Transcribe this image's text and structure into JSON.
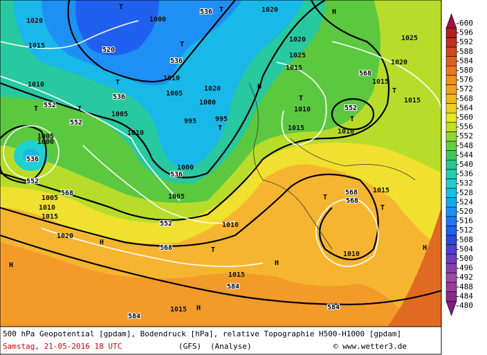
{
  "caption": {
    "title": "500 hPa Geopotential [gpdam], Bodendruck [hPa], relative Topographie H500-H1000 [gpdam]",
    "date": "Samstag, 21-05-2016  18 UTC",
    "model": "(GFS)",
    "run": "(Analyse)",
    "credit": "© www.wetter3.de"
  },
  "colorbar": {
    "levels": [
      480,
      484,
      488,
      492,
      496,
      500,
      504,
      508,
      512,
      516,
      520,
      524,
      528,
      532,
      536,
      540,
      544,
      548,
      552,
      556,
      560,
      564,
      568,
      572,
      576,
      580,
      584,
      588,
      592,
      596,
      600
    ],
    "colors": [
      "#7b1f7b",
      "#8a2c8a",
      "#9b3c9b",
      "#a04aa6",
      "#8a3fb0",
      "#6e3cc0",
      "#4d3fd0",
      "#3046e0",
      "#2060f0",
      "#1e78f5",
      "#1e90f5",
      "#18a8f0",
      "#18c0e8",
      "#20d0d0",
      "#20d0b0",
      "#28c890",
      "#40c860",
      "#60d040",
      "#90d830",
      "#c0e020",
      "#e8e820",
      "#f0d020",
      "#f0b820",
      "#f0a020",
      "#f09020",
      "#e87820",
      "#e06020",
      "#d04820",
      "#c03020",
      "#b02020",
      "#a01040"
    ]
  },
  "map_labels": [
    "520",
    "536",
    "536",
    "552",
    "552",
    "536",
    "552",
    "568",
    "552",
    "568",
    "536",
    "552",
    "568",
    "568",
    "568",
    "584",
    "584",
    "584",
    "536",
    "H",
    "T",
    "T",
    "T",
    "T",
    "T",
    "T",
    "T",
    "T",
    "T",
    "T",
    "T",
    "T",
    "T",
    "H",
    "H",
    "H",
    "H",
    "H",
    "H",
    "1020",
    "1015",
    "1010",
    "1005",
    "1010",
    "1005",
    "1000",
    "995",
    "1000",
    "1005",
    "1010",
    "1005",
    "1020",
    "1000",
    "995",
    "1010",
    "1005",
    "1010",
    "1015",
    "1020",
    "1015",
    "1015",
    "1010",
    "1015",
    "1010",
    "1015",
    "1015",
    "1020",
    "1025",
    "1020",
    "1025",
    "1020",
    "1015",
    "1015",
    "1010",
    "1000"
  ]
}
